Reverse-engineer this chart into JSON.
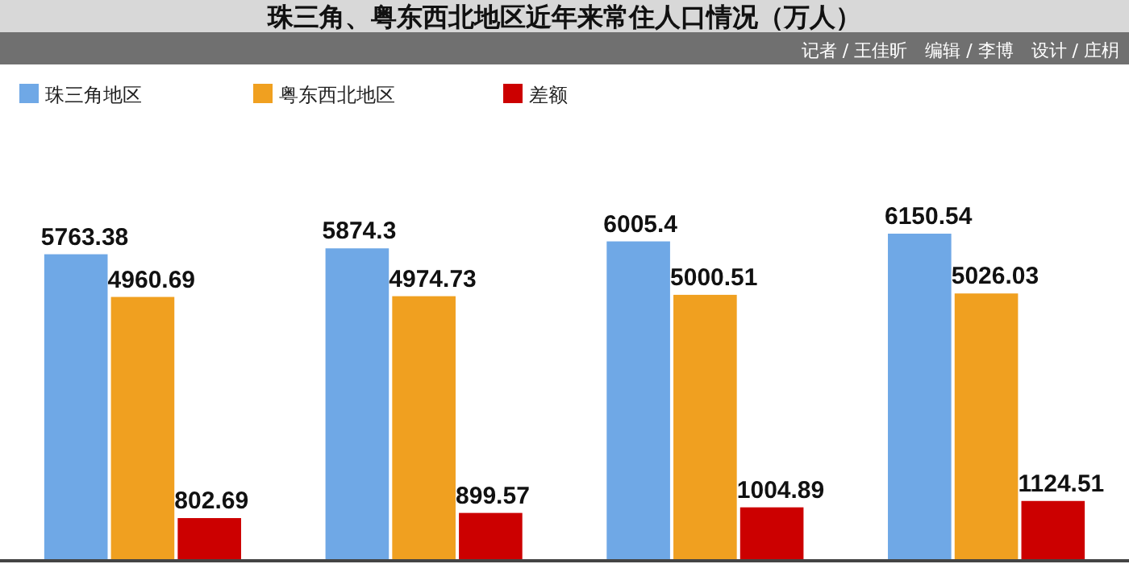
{
  "chart_data": {
    "type": "bar",
    "title": "珠三角、粤东西北地区近年来常住人口情况（万人）",
    "annotations": [
      "记者 / 王佳昕　编辑 / 李博　设计 / 庄枂"
    ],
    "categories": [
      null,
      null,
      null,
      null
    ],
    "series": [
      {
        "name": "珠三角地区",
        "color": "#6fa8e6",
        "values": [
          5763.38,
          5874.3,
          6005.4,
          6150.54
        ]
      },
      {
        "name": "粤东西北地区",
        "color": "#f0a020",
        "values": [
          4960.69,
          4974.73,
          5000.51,
          5026.03
        ]
      },
      {
        "name": "差额",
        "color": "#cc0000",
        "values": [
          802.69,
          899.57,
          1004.89,
          1124.51
        ]
      }
    ],
    "data_labels": true,
    "legend": "top left",
    "grid": false
  }
}
